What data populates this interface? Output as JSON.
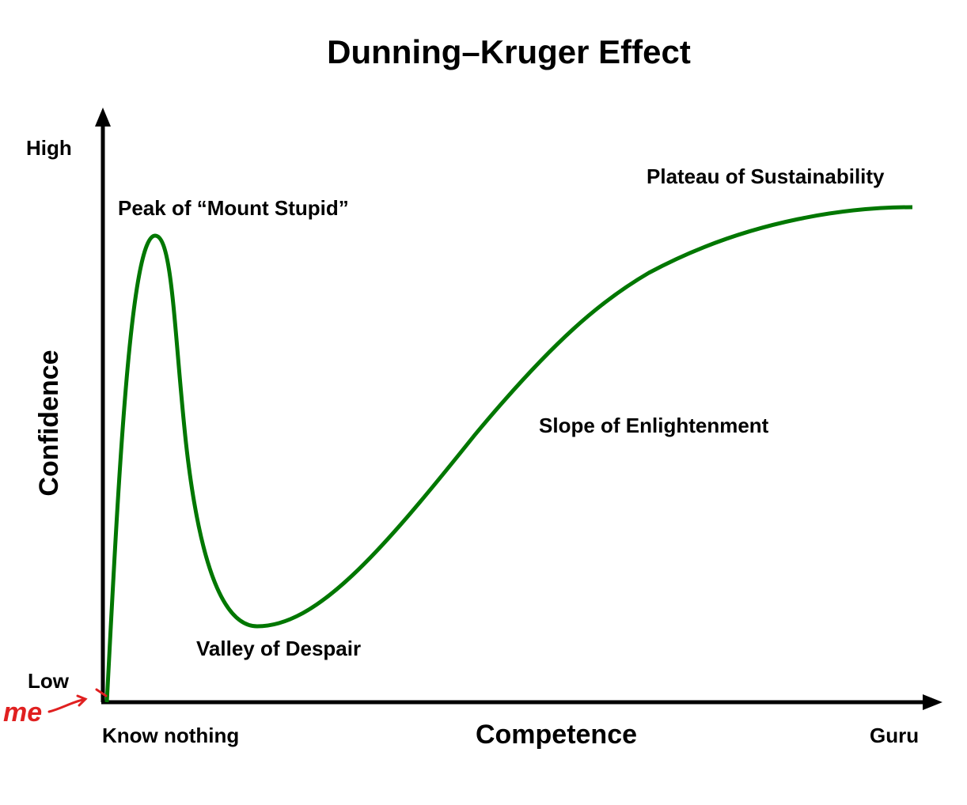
{
  "title": "Dunning–Kruger Effect",
  "y_axis": {
    "label": "Confidence",
    "high": "High",
    "low": "Low"
  },
  "x_axis": {
    "label": "Competence",
    "low": "Know nothing",
    "high": "Guru"
  },
  "annotations": [
    "Peak of “Mount Stupid”",
    "Plateau of Sustainability",
    "Slope of Enlightenment",
    "Valley of Despair"
  ],
  "handwritten_note": "me"
}
